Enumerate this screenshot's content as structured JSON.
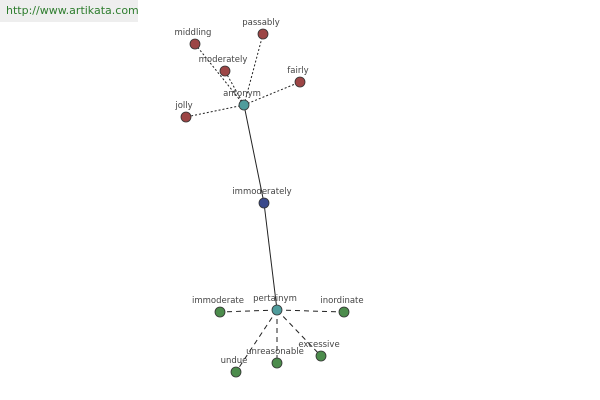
{
  "header": {
    "url": "http://www.artikata.com"
  },
  "nodes": [
    {
      "label": "antonym"
    },
    {
      "label": "middling"
    },
    {
      "label": "passably"
    },
    {
      "label": "moderately"
    },
    {
      "label": "fairly"
    },
    {
      "label": "jolly"
    },
    {
      "label": "immoderately"
    },
    {
      "label": "pertainym"
    },
    {
      "label": "immoderate"
    },
    {
      "label": "inordinate"
    },
    {
      "label": "undue"
    },
    {
      "label": "unreasonable"
    },
    {
      "label": "excessive"
    }
  ]
}
